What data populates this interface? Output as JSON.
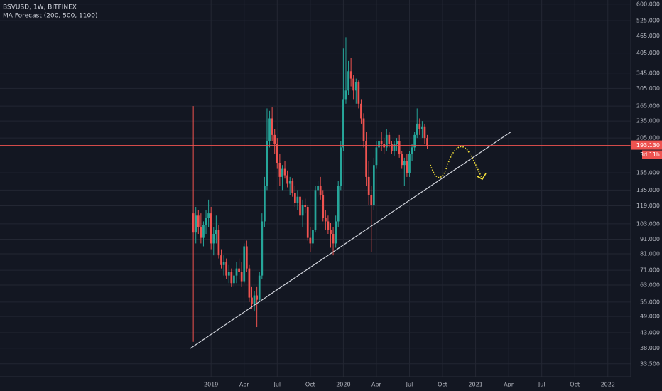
{
  "chart_data": {
    "type": "candlestick",
    "title": "BSVUSD, 1W, BITFINEX",
    "subtitle": "MA Forecast (200, 500, 1100)",
    "log_scale": true,
    "grid": true,
    "up_color": "#26a69a",
    "down_color": "#ef5350",
    "open": [
      112,
      96,
      110,
      100,
      92,
      102,
      108,
      112,
      88,
      95,
      98,
      80,
      74,
      76,
      68,
      70,
      64,
      68,
      72,
      70,
      65,
      86,
      72,
      57,
      54,
      58,
      56,
      68,
      105,
      140,
      200,
      240,
      210,
      195,
      168,
      150,
      160,
      152,
      142,
      145,
      132,
      122,
      128,
      110,
      120,
      118,
      92,
      88,
      98,
      135,
      140,
      130,
      108,
      105,
      98,
      95,
      88,
      105,
      140,
      190,
      280,
      300,
      350,
      330,
      300,
      320,
      270,
      240,
      200,
      150,
      130,
      120,
      165,
      190,
      200,
      195,
      190,
      210,
      195,
      185,
      195,
      200,
      180,
      165,
      170,
      155,
      180,
      190,
      210,
      230,
      220,
      225,
      205
    ],
    "high": [
      265,
      118,
      115,
      112,
      105,
      115,
      125,
      118,
      100,
      110,
      102,
      84,
      80,
      78,
      74,
      72,
      70,
      76,
      78,
      76,
      88,
      90,
      74,
      62,
      60,
      62,
      70,
      112,
      150,
      260,
      255,
      262,
      220,
      205,
      180,
      165,
      170,
      158,
      150,
      148,
      140,
      135,
      132,
      125,
      126,
      120,
      100,
      100,
      140,
      145,
      150,
      135,
      115,
      110,
      104,
      100,
      110,
      145,
      200,
      420,
      460,
      380,
      390,
      340,
      330,
      325,
      280,
      250,
      215,
      170,
      140,
      175,
      200,
      210,
      215,
      205,
      220,
      215,
      200,
      200,
      205,
      210,
      185,
      175,
      180,
      185,
      195,
      215,
      260,
      240,
      235,
      230,
      210
    ],
    "low": [
      40,
      88,
      95,
      88,
      86,
      95,
      100,
      84,
      80,
      88,
      78,
      72,
      68,
      66,
      64,
      62,
      62,
      64,
      66,
      62,
      64,
      70,
      55,
      52,
      51,
      45,
      55,
      66,
      100,
      135,
      190,
      200,
      180,
      160,
      140,
      135,
      148,
      138,
      130,
      128,
      118,
      115,
      105,
      100,
      112,
      90,
      82,
      85,
      96,
      128,
      125,
      105,
      98,
      95,
      85,
      80,
      85,
      100,
      135,
      185,
      270,
      290,
      310,
      280,
      270,
      260,
      230,
      190,
      140,
      120,
      82,
      115,
      160,
      180,
      185,
      180,
      185,
      190,
      180,
      178,
      185,
      175,
      160,
      140,
      150,
      150,
      170,
      185,
      205,
      210,
      205,
      195,
      188
    ],
    "close": [
      96,
      110,
      100,
      92,
      102,
      108,
      112,
      88,
      95,
      98,
      80,
      74,
      76,
      68,
      70,
      64,
      68,
      72,
      70,
      65,
      86,
      72,
      57,
      54,
      58,
      56,
      68,
      105,
      140,
      200,
      240,
      210,
      195,
      168,
      150,
      160,
      152,
      142,
      145,
      132,
      122,
      128,
      110,
      120,
      118,
      92,
      88,
      98,
      135,
      140,
      130,
      108,
      105,
      98,
      95,
      88,
      105,
      140,
      190,
      280,
      300,
      350,
      330,
      300,
      320,
      270,
      240,
      200,
      150,
      130,
      120,
      165,
      190,
      200,
      195,
      190,
      210,
      195,
      185,
      195,
      200,
      180,
      165,
      170,
      155,
      180,
      190,
      210,
      230,
      220,
      225,
      205,
      193.13
    ],
    "last_label": "193.130",
    "countdown": "3d 11h",
    "xlim": [
      -76,
      172
    ],
    "xticks": [
      {
        "value": 7,
        "label": "2019"
      },
      {
        "value": 20,
        "label": "Apr"
      },
      {
        "value": 33,
        "label": "Jul"
      },
      {
        "value": 46,
        "label": "Oct"
      },
      {
        "value": 59,
        "label": "2020"
      },
      {
        "value": 72,
        "label": "Apr"
      },
      {
        "value": 85,
        "label": "Jul"
      },
      {
        "value": 98,
        "label": "Oct"
      },
      {
        "value": 111,
        "label": "2021"
      },
      {
        "value": 124,
        "label": "Apr"
      },
      {
        "value": 137,
        "label": "Jul"
      },
      {
        "value": 150,
        "label": "Oct"
      },
      {
        "value": 163,
        "label": "2022"
      }
    ],
    "ylim": [
      30.2,
      620
    ],
    "yticks": [
      {
        "value": 600,
        "label": "600.000"
      },
      {
        "value": 525,
        "label": "525.000"
      },
      {
        "value": 465,
        "label": "465.000"
      },
      {
        "value": 405,
        "label": "405.000"
      },
      {
        "value": 345,
        "label": "345.000"
      },
      {
        "value": 305,
        "label": "305.000"
      },
      {
        "value": 265,
        "label": "265.000"
      },
      {
        "value": 235,
        "label": "235.000"
      },
      {
        "value": 205,
        "label": "205.000"
      },
      {
        "value": 155,
        "label": "155.000"
      },
      {
        "value": 135,
        "label": "135.000"
      },
      {
        "value": 119,
        "label": "119.000"
      },
      {
        "value": 103,
        "label": "103.000"
      },
      {
        "value": 91,
        "label": "91.000"
      },
      {
        "value": 81,
        "label": "81.000"
      },
      {
        "value": 71,
        "label": "71.000"
      },
      {
        "value": 63,
        "label": "63.000"
      },
      {
        "value": 55,
        "label": "55.000"
      },
      {
        "value": 49,
        "label": "49.000"
      },
      {
        "value": 43,
        "label": "43.000"
      },
      {
        "value": 38,
        "label": "38.000"
      },
      {
        "value": 33.5,
        "label": "33.500"
      }
    ]
  }
}
